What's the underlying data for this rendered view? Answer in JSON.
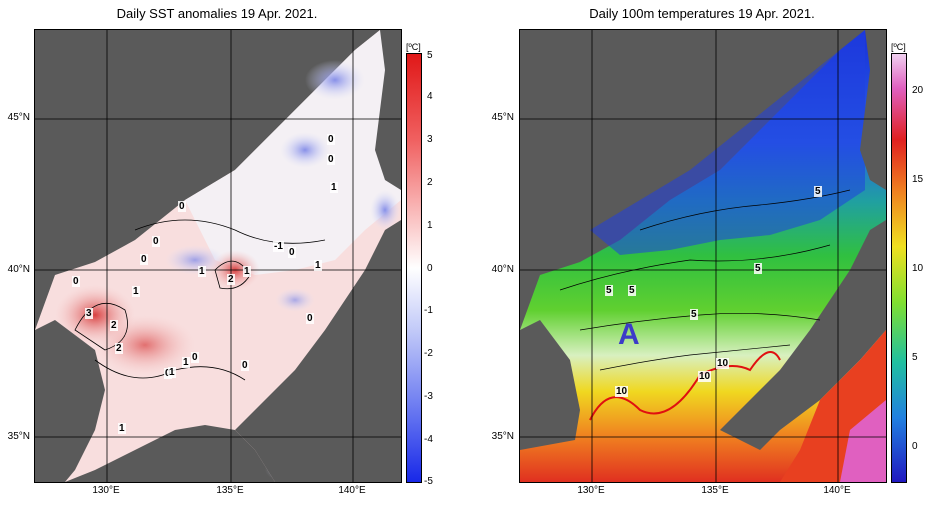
{
  "left_panel": {
    "title": "Daily SST anomalies 19 Apr. 2021.",
    "unit": "[ºC]",
    "colorbar_ticks": [
      "5",
      "4",
      "3",
      "2",
      "1",
      "0",
      "-1",
      "-2",
      "-3",
      "-4",
      "-5"
    ],
    "colors": {
      "land": "#5a5a5a",
      "positive": "#e05050",
      "negative": "#5060e0",
      "neutral": "#ffffff"
    },
    "contour_labels": [
      "0",
      "0",
      "0",
      "0",
      "1",
      "0",
      "-1",
      "0",
      "1",
      "1",
      "0",
      "2",
      "1",
      "1",
      "0",
      "3",
      "2",
      "2",
      "0",
      "1",
      "0",
      "0",
      "1",
      "1"
    ]
  },
  "right_panel": {
    "title": "Daily 100m temperatures 19 Apr. 2021.",
    "unit": "[ºC]",
    "colorbar_ticks": [
      "20",
      "15",
      "10",
      "5",
      "0"
    ],
    "colors": {
      "land": "#5a5a5a",
      "current_line": "#e01010",
      "marker": "#3c3cc8"
    },
    "contour_labels": [
      "5",
      "5",
      "5",
      "5",
      "5",
      "10",
      "10",
      "10"
    ],
    "marker_label": "A"
  },
  "axes": {
    "lat_labels": [
      "45°N",
      "40°N",
      "35°N"
    ],
    "lon_labels": [
      "130°E",
      "135°E",
      "140°E"
    ]
  }
}
